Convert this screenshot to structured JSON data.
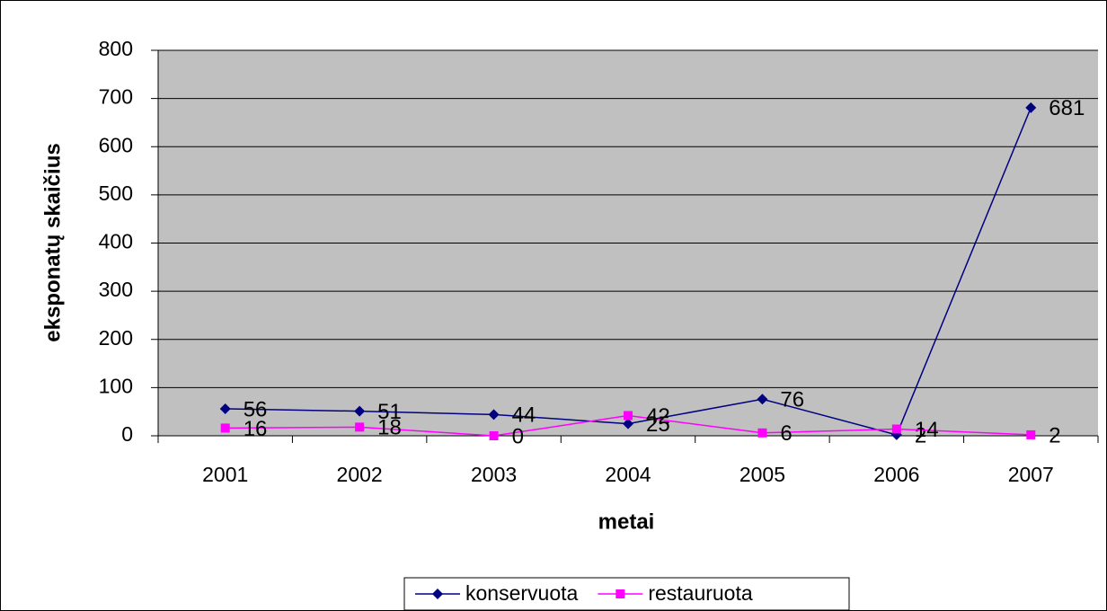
{
  "chart_data": {
    "type": "line",
    "x_label": "metai",
    "y_label": "eksponatų skaičius",
    "categories": [
      "2001",
      "2002",
      "2003",
      "2004",
      "2005",
      "2006",
      "2007"
    ],
    "series": [
      {
        "name": "konservuota",
        "color": "#000080",
        "values": [
          56,
          51,
          44,
          25,
          76,
          2,
          681
        ]
      },
      {
        "name": "restauruota",
        "color": "#ff00ff",
        "values": [
          16,
          18,
          0,
          42,
          6,
          14,
          2
        ]
      }
    ],
    "ylim": [
      0,
      800
    ],
    "yticks": [
      0,
      100,
      200,
      300,
      400,
      500,
      600,
      700,
      800
    ],
    "grid": true,
    "legend": "bottom"
  }
}
